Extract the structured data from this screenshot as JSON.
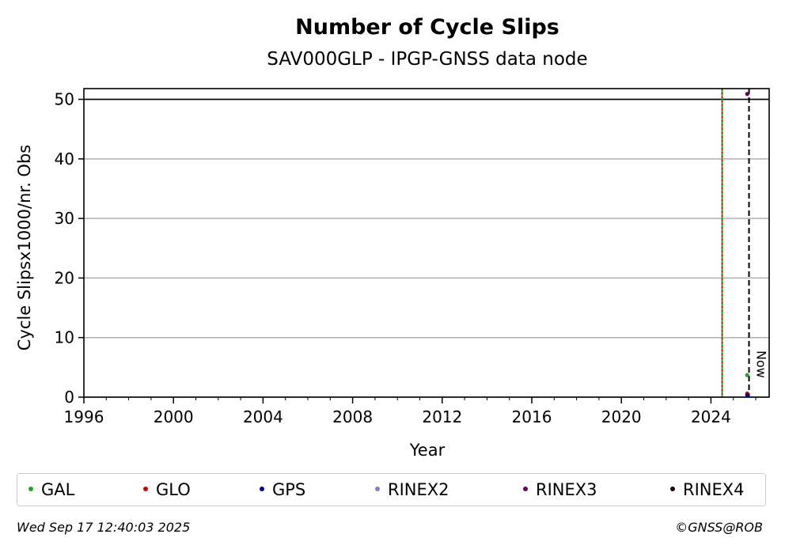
{
  "chart_data": {
    "type": "scatter",
    "title": "Number of Cycle Slips",
    "subtitle": "SAV000GLP - IPGP-GNSS data node",
    "xlabel": "Year",
    "ylabel": "Cycle Slipsx1000/nr. Obs",
    "xlim": [
      1996,
      2026.6
    ],
    "ylim": [
      0,
      51.8
    ],
    "xticks": [
      1996,
      2000,
      2004,
      2008,
      2012,
      2016,
      2020,
      2024
    ],
    "yticks": [
      0,
      10,
      20,
      30,
      40,
      50
    ],
    "grid": "y",
    "reference_line_y": 50,
    "vertical_lines": [
      {
        "x": 2024.5,
        "color": "#2ca02c",
        "style": "solid"
      },
      {
        "x": 2024.5,
        "color": "#cc0000",
        "style": "dotted"
      },
      {
        "x": 2025.7,
        "color": "#000000",
        "style": "dashed",
        "label": "Now"
      }
    ],
    "series": [
      {
        "name": "GAL",
        "color": "#2ca02c",
        "points": [
          [
            2025.62,
            3.7
          ]
        ]
      },
      {
        "name": "GLO",
        "color": "#cc0000",
        "points": [
          [
            2025.62,
            0.6
          ]
        ]
      },
      {
        "name": "GPS",
        "color": "#000099",
        "points": [
          [
            2025.62,
            0.3
          ]
        ]
      },
      {
        "name": "RINEX2",
        "color": "#8c7dc0",
        "points": []
      },
      {
        "name": "RINEX3",
        "color": "#66005c",
        "points": [
          [
            2025.62,
            50.9
          ]
        ]
      },
      {
        "name": "RINEX4",
        "color": "#1a0010",
        "points": []
      }
    ],
    "legend_position": "bottom"
  },
  "footer": {
    "timestamp": "Wed Sep 17 12:40:03 2025",
    "copyright": "©GNSS@ROB"
  }
}
